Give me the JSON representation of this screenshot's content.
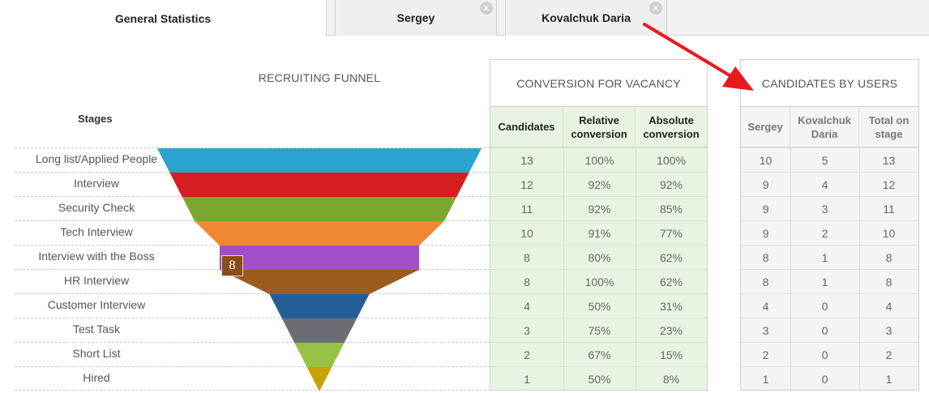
{
  "tabs": [
    {
      "label": "General Statistics",
      "closable": false,
      "active": true
    },
    {
      "label": "Sergey",
      "closable": true,
      "active": false
    },
    {
      "label": "Kovalchuk Daria",
      "closable": true,
      "active": false
    }
  ],
  "funnel": {
    "title": "RECRUITING FUNNEL",
    "stages_header": "Stages",
    "tooltip_value": "8",
    "stages": [
      {
        "name": "Long list/Applied People",
        "color": "#2aa3cf"
      },
      {
        "name": "Interview",
        "color": "#d41e1f"
      },
      {
        "name": "Security Check",
        "color": "#7aa82e"
      },
      {
        "name": "Tech Interview",
        "color": "#f08733"
      },
      {
        "name": "Interview with the Boss",
        "color": "#a04fca"
      },
      {
        "name": "HR Interview",
        "color": "#9c5b1f"
      },
      {
        "name": "Customer Interview",
        "color": "#255e96"
      },
      {
        "name": "Test Task",
        "color": "#6a6e74"
      },
      {
        "name": "Short List",
        "color": "#98c244"
      },
      {
        "name": "Hired",
        "color": "#c7a300"
      }
    ]
  },
  "conversion": {
    "title": "CONVERSION FOR VACANCY",
    "headers": [
      "Candidates",
      "Relative conversion",
      "Absolute conversion"
    ],
    "rows": [
      [
        "13",
        "100%",
        "100%"
      ],
      [
        "12",
        "92%",
        "92%"
      ],
      [
        "11",
        "92%",
        "85%"
      ],
      [
        "10",
        "91%",
        "77%"
      ],
      [
        "8",
        "80%",
        "62%"
      ],
      [
        "8",
        "100%",
        "62%"
      ],
      [
        "4",
        "50%",
        "31%"
      ],
      [
        "3",
        "75%",
        "23%"
      ],
      [
        "2",
        "67%",
        "15%"
      ],
      [
        "1",
        "50%",
        "8%"
      ]
    ]
  },
  "users": {
    "title": "CANDIDATES BY USERS",
    "headers": [
      "Sergey",
      "Kovalchuk Daria",
      "Total on stage"
    ],
    "rows": [
      [
        "10",
        "5",
        "13"
      ],
      [
        "9",
        "4",
        "12"
      ],
      [
        "9",
        "3",
        "11"
      ],
      [
        "9",
        "2",
        "10"
      ],
      [
        "8",
        "1",
        "8"
      ],
      [
        "8",
        "1",
        "8"
      ],
      [
        "4",
        "0",
        "4"
      ],
      [
        "3",
        "0",
        "3"
      ],
      [
        "2",
        "0",
        "2"
      ],
      [
        "1",
        "0",
        "1"
      ]
    ]
  },
  "arrow_color": "#e8191f"
}
